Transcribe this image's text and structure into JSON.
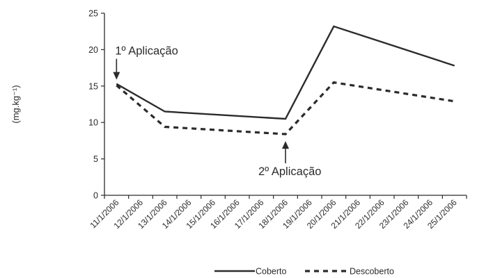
{
  "chart_data": {
    "type": "line",
    "title": "",
    "xlabel": "",
    "ylabel": "(mg.kg⁻¹)",
    "ylim": [
      0,
      25
    ],
    "yticks": [
      0,
      5,
      10,
      15,
      20,
      25
    ],
    "grid": false,
    "legend_position": "bottom-right",
    "categories": [
      "11/1/2006",
      "12/1/2006",
      "13/1/2006",
      "14/1/2006",
      "15/1/2006",
      "16/1/2006",
      "17/1/2006",
      "18/1/2006",
      "19/1/2006",
      "20/1/2006",
      "21/1/2006",
      "22/1/2006",
      "23/1/2006",
      "24/1/2006",
      "25/1/2006"
    ],
    "series": [
      {
        "name": "Coberto",
        "style": "solid",
        "color": "#2b2b2b",
        "points": [
          {
            "x": "11/1/2006",
            "y": 15.3
          },
          {
            "x": "13/1/2006",
            "y": 11.5
          },
          {
            "x": "18/1/2006",
            "y": 10.5
          },
          {
            "x": "20/1/2006",
            "y": 23.2
          },
          {
            "x": "25/1/2006",
            "y": 17.8
          }
        ]
      },
      {
        "name": "Descoberto",
        "style": "dashed",
        "color": "#2b2b2b",
        "points": [
          {
            "x": "11/1/2006",
            "y": 15.1
          },
          {
            "x": "13/1/2006",
            "y": 9.4
          },
          {
            "x": "18/1/2006",
            "y": 8.4
          },
          {
            "x": "20/1/2006",
            "y": 15.5
          },
          {
            "x": "25/1/2006",
            "y": 12.9
          }
        ]
      }
    ],
    "annotations": [
      {
        "text": "1º Aplicação",
        "x": "11/1/2006",
        "y": 15.3,
        "arrow": "down"
      },
      {
        "text": "2º Aplicação",
        "x": "18/1/2006",
        "y": 8.4,
        "arrow": "up"
      }
    ]
  }
}
